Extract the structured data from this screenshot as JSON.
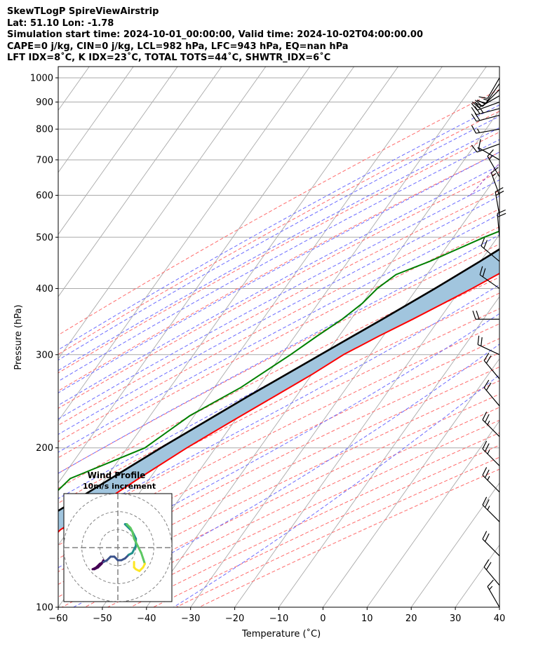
{
  "header": {
    "line1": "SkewTLogP SpireViewAirstrip",
    "line2": "Lat: 51.10   Lon: -1.78",
    "line3": "Simulation start time: 2024-10-01_00:00:00, Valid time: 2024-10-02T04:00:00.00",
    "line4": "CAPE=0 j/kg, CIN=0 j/kg, LCL=982 hPa, LFC=943 hPa, EQ=nan hPa",
    "line5": "LFT IDX=8˚C, K IDX=23˚C, TOTAL TOTS=44˚C, SHWTR_IDX=6˚C"
  },
  "colors": {
    "temperature": "#ff0000",
    "dewpoint": "#008000",
    "parcel": "#000000",
    "cape_fill": "#a1c5de",
    "dry_adiabats": "#ff6b6b",
    "moist_adiabats": "#6b6bff",
    "mixing_ratio": "#9a40c0",
    "isotherms": "#aaaaaa",
    "hodograph_ring": "#808080",
    "hodograph_colormap": [
      "#440154",
      "#3b528b",
      "#21908c",
      "#5dc863",
      "#fde725"
    ]
  },
  "chart_data": [
    {
      "type": "line",
      "title": "",
      "xlabel": "Temperature (˚C)",
      "ylabel": "Pressure (hPa)",
      "xlim": [
        -60,
        40
      ],
      "ylim": [
        1050,
        100
      ],
      "yscale": "log",
      "skew": true,
      "grid": true,
      "x_ticks": [
        -60,
        -50,
        -40,
        -30,
        -20,
        -10,
        0,
        10,
        20,
        30,
        40
      ],
      "y_ticks": [
        1000,
        900,
        800,
        700,
        600,
        500,
        400,
        300,
        200,
        100
      ],
      "series": [
        {
          "name": "",
          "role": "temperature",
          "points": [
            [
              1000,
              12
            ],
            [
              985,
              12.8
            ],
            [
              960,
              13
            ],
            [
              925,
              12.2
            ],
            [
              900,
              11
            ],
            [
              850,
              9.7
            ],
            [
              800,
              8.2
            ],
            [
              750,
              6.7
            ],
            [
              700,
              5.3
            ],
            [
              650,
              3.9
            ],
            [
              600,
              2.2
            ],
            [
              550,
              -0.9
            ],
            [
              500,
              -5.2
            ],
            [
              450,
              -10.7
            ],
            [
              400,
              -17.5
            ],
            [
              350,
              -26
            ],
            [
              325,
              -31
            ],
            [
              300,
              -36
            ],
            [
              275,
              -40
            ],
            [
              250,
              -45
            ],
            [
              225,
              -50.5
            ],
            [
              200,
              -56.5
            ],
            [
              175,
              -62.5
            ],
            [
              150,
              -69
            ],
            [
              140,
              -72
            ],
            [
              130,
              -73
            ],
            [
              120,
              -74
            ],
            [
              110,
              -77
            ],
            [
              100,
              -80
            ]
          ]
        },
        {
          "name": "",
          "role": "dewpoint",
          "points": [
            [
              1000,
              11.5
            ],
            [
              960,
              10.5
            ],
            [
              925,
              8.8
            ],
            [
              900,
              7.8
            ],
            [
              850,
              4.5
            ],
            [
              800,
              2.2
            ],
            [
              770,
              0
            ],
            [
              750,
              -0.3
            ],
            [
              700,
              -1.8
            ],
            [
              650,
              -4.6
            ],
            [
              600,
              -8.5
            ],
            [
              550,
              -14
            ],
            [
              500,
              -23
            ],
            [
              450,
              -31.5
            ],
            [
              425,
              -37
            ],
            [
              400,
              -39
            ],
            [
              375,
              -40
            ],
            [
              350,
              -42
            ],
            [
              325,
              -45
            ],
            [
              300,
              -48
            ],
            [
              260,
              -54
            ],
            [
              230,
              -61
            ],
            [
              200,
              -66
            ],
            [
              185,
              -73
            ],
            [
              175,
              -78
            ],
            [
              155,
              -80
            ],
            [
              100,
              -83
            ]
          ]
        },
        {
          "name": "",
          "role": "parcel",
          "points": [
            [
              1000,
              11.8
            ],
            [
              982,
              11
            ],
            [
              950,
              9.6
            ],
            [
              925,
              8.6
            ],
            [
              900,
              7.5
            ],
            [
              850,
              5.6
            ],
            [
              800,
              3.4
            ],
            [
              750,
              1.1
            ],
            [
              700,
              -1.5
            ],
            [
              650,
              -4.2
            ],
            [
              600,
              -7.4
            ],
            [
              550,
              -11.1
            ],
            [
              500,
              -15.2
            ],
            [
              450,
              -20.1
            ],
            [
              400,
              -25.9
            ],
            [
              350,
              -32.9
            ],
            [
              300,
              -41.2
            ],
            [
              250,
              -51
            ],
            [
              200,
              -62.4
            ],
            [
              150,
              -76.2
            ],
            [
              100,
              -94
            ]
          ]
        }
      ],
      "wind_barbs": [
        {
          "p": 1000,
          "speed": 10,
          "dir": 210
        },
        {
          "p": 975,
          "speed": 15,
          "dir": 215
        },
        {
          "p": 950,
          "speed": 20,
          "dir": 225
        },
        {
          "p": 925,
          "speed": 20,
          "dir": 240
        },
        {
          "p": 900,
          "speed": 20,
          "dir": 250
        },
        {
          "p": 875,
          "speed": 25,
          "dir": 255
        },
        {
          "p": 850,
          "speed": 20,
          "dir": 255
        },
        {
          "p": 800,
          "speed": 15,
          "dir": 260
        },
        {
          "p": 750,
          "speed": 15,
          "dir": 250
        },
        {
          "p": 700,
          "speed": 10,
          "dir": 300
        },
        {
          "p": 650,
          "speed": 15,
          "dir": 330
        },
        {
          "p": 600,
          "speed": 15,
          "dir": 340
        },
        {
          "p": 550,
          "speed": 20,
          "dir": 350
        },
        {
          "p": 500,
          "speed": 20,
          "dir": 355
        },
        {
          "p": 450,
          "speed": 20,
          "dir": 310
        },
        {
          "p": 400,
          "speed": 20,
          "dir": 305
        },
        {
          "p": 350,
          "speed": 20,
          "dir": 270
        },
        {
          "p": 300,
          "speed": 20,
          "dir": 295
        },
        {
          "p": 270,
          "speed": 20,
          "dir": 320
        },
        {
          "p": 240,
          "speed": 20,
          "dir": 320
        },
        {
          "p": 210,
          "speed": 25,
          "dir": 315
        },
        {
          "p": 185,
          "speed": 25,
          "dir": 315
        },
        {
          "p": 165,
          "speed": 25,
          "dir": 315
        },
        {
          "p": 145,
          "speed": 25,
          "dir": 315
        },
        {
          "p": 125,
          "speed": 20,
          "dir": 315
        },
        {
          "p": 110,
          "speed": 20,
          "dir": 320
        },
        {
          "p": 100,
          "speed": 15,
          "dir": 330
        }
      ]
    },
    {
      "type": "scatter",
      "title": "Wind Profile",
      "subtitle": "10m/s increment",
      "rings_ms": [
        10,
        20,
        30
      ],
      "lim": [
        -30,
        30
      ],
      "colormap": "viridis",
      "uv": [
        [
          -8,
          -7
        ],
        [
          -9,
          -9
        ],
        [
          -11,
          -11
        ],
        [
          -13,
          -12
        ],
        [
          -14,
          -12
        ],
        [
          -12,
          -11
        ],
        [
          -10,
          -9
        ],
        [
          -8,
          -8
        ],
        [
          -6,
          -7
        ],
        [
          -4,
          -5
        ],
        [
          -2,
          -5
        ],
        [
          0,
          -7
        ],
        [
          2,
          -7
        ],
        [
          4,
          -6
        ],
        [
          6,
          -4
        ],
        [
          8,
          -3
        ],
        [
          10,
          1
        ],
        [
          10,
          5
        ],
        [
          8,
          9
        ],
        [
          6,
          11
        ],
        [
          4,
          13
        ],
        [
          5,
          13
        ],
        [
          7,
          11
        ],
        [
          8,
          9
        ],
        [
          9,
          5
        ],
        [
          11,
          1
        ],
        [
          13,
          -3
        ],
        [
          14,
          -6
        ],
        [
          15,
          -9
        ],
        [
          14,
          -11
        ],
        [
          12,
          -13
        ],
        [
          10,
          -12
        ],
        [
          9,
          -11
        ],
        [
          9,
          -9
        ],
        [
          9,
          -8
        ]
      ]
    }
  ]
}
